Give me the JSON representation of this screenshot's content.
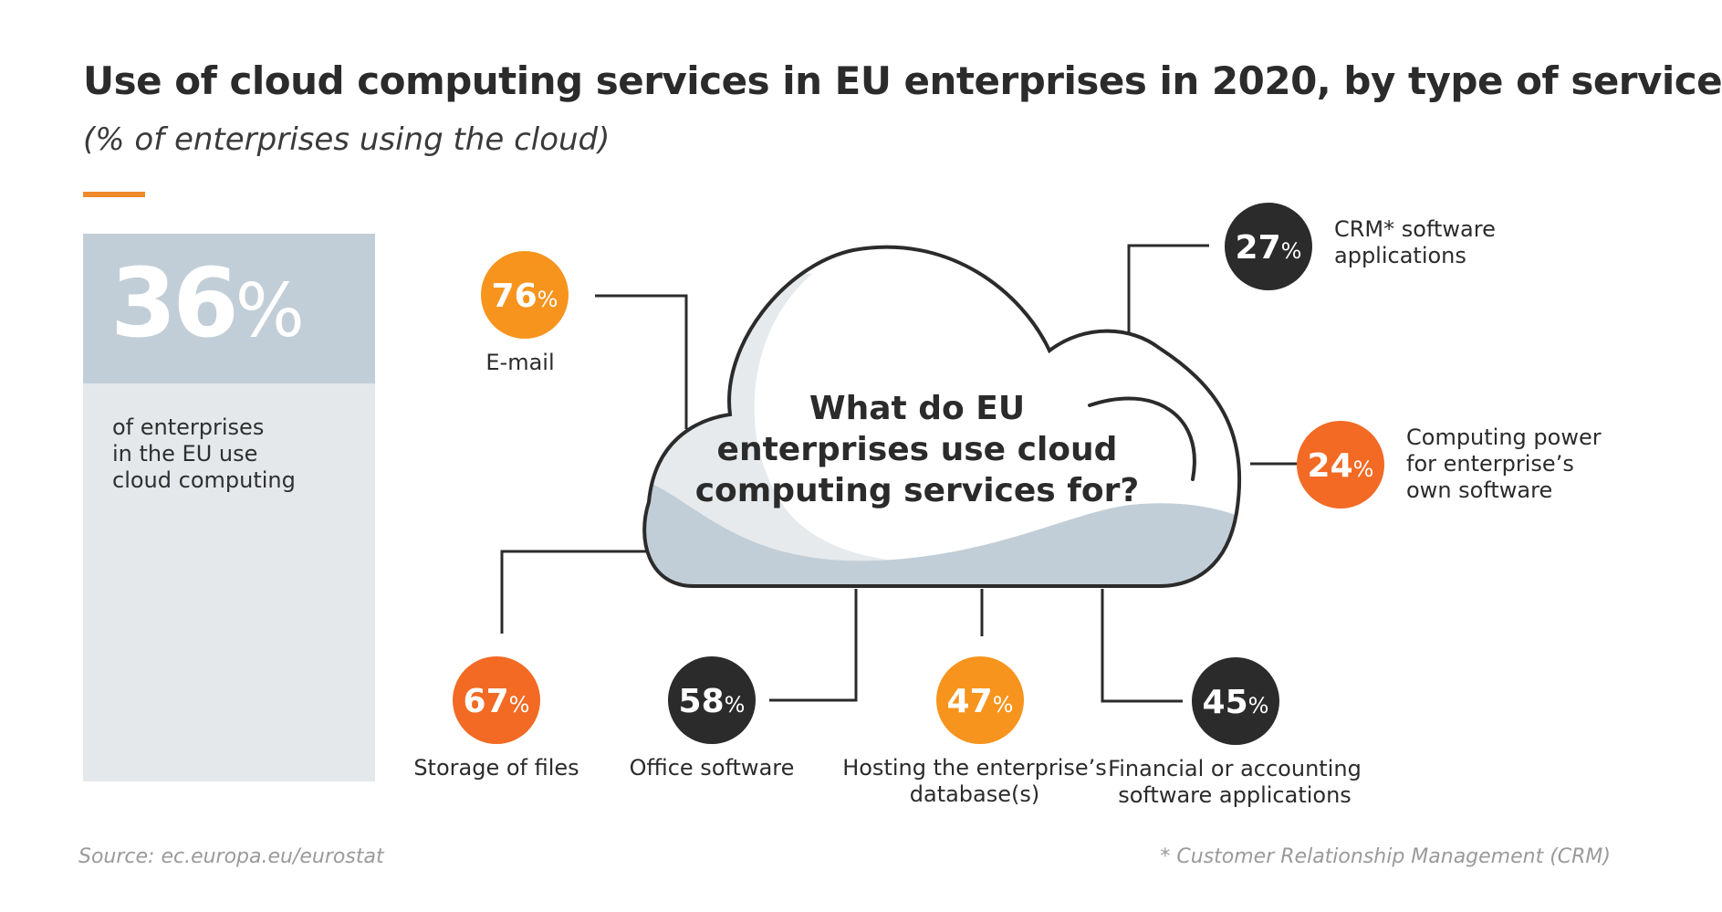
{
  "header": {
    "title": "Use of cloud computing services in EU enterprises in 2020, by type of service",
    "subtitle": "(% of enterprises using the cloud)"
  },
  "summary": {
    "value": "36",
    "unit": "%",
    "description_lines": [
      "of enterprises",
      "in the EU use",
      "cloud computing"
    ]
  },
  "center_question_lines": [
    "What do EU",
    "enterprises use cloud",
    "computing services for?"
  ],
  "colors": {
    "accent_orange": "#f0892a",
    "orange_light": "#f7941d",
    "orange_dark": "#f26a24",
    "dark": "#2b2b2b",
    "panel_top": "#c2ced7",
    "panel_bottom": "#e4e8eb",
    "cloud_shade": "#c2ced7",
    "cloud_light": "#e6eaed"
  },
  "chart_data": {
    "type": "infographic",
    "unit": "%",
    "categories": [
      "E-mail",
      "Storage of files",
      "Office software",
      "Hosting the enterprise's database(s)",
      "Financial or accounting software applications",
      "CRM* software applications",
      "Computing power for enterprise's own software"
    ],
    "values": [
      76,
      67,
      58,
      47,
      45,
      27,
      24
    ],
    "items": [
      {
        "value": 76,
        "label_lines": [
          "E-mail"
        ],
        "color": "orange_light"
      },
      {
        "value": 67,
        "label_lines": [
          "Storage of files"
        ],
        "color": "orange_dark"
      },
      {
        "value": 58,
        "label_lines": [
          "Office software"
        ],
        "color": "dark"
      },
      {
        "value": 47,
        "label_lines": [
          "Hosting the enterprise’s",
          "database(s)"
        ],
        "color": "orange_light"
      },
      {
        "value": 45,
        "label_lines": [
          "Financial or accounting",
          "software applications"
        ],
        "color": "dark"
      },
      {
        "value": 27,
        "label_lines": [
          "CRM* software",
          "applications"
        ],
        "color": "dark"
      },
      {
        "value": 24,
        "label_lines": [
          "Computing power",
          "for enterprise’s",
          "own software"
        ],
        "color": "orange_dark"
      }
    ]
  },
  "footer": {
    "source": "Source: ec.europa.eu/eurostat",
    "note": "* Customer Relationship Management (CRM)"
  }
}
